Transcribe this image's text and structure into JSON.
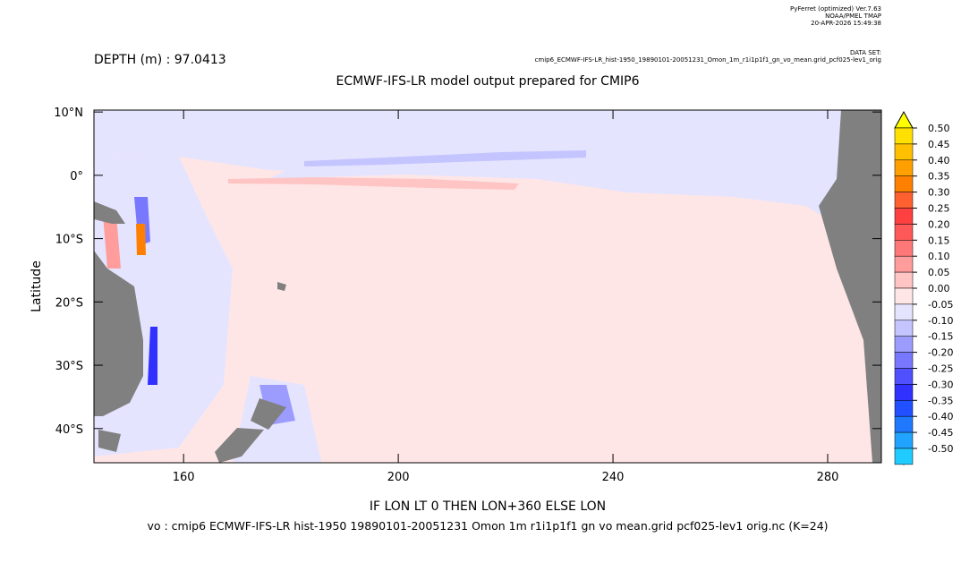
{
  "chart_data": {
    "type": "contour",
    "header": [
      "PyFerret (optimized) Ver.7.63",
      "NOAA/PMEL TMAP",
      "20-APR-2026 15:49:38"
    ],
    "dataset_label": "DATA SET:",
    "dataset": "cmip6_ECMWF-IFS-LR_hist-1950_19890101-20051231_Omon_1m_r1i1p1f1_gn_vo_mean.grid_pcf025-lev1_orig",
    "subtitle": "DEPTH (m) : 97.0413",
    "title": "ECMWF-IFS-LR model output prepared for CMIP6",
    "x_label": "IF LON LT 0 THEN LON+360 ELSE LON",
    "y_label": "Latitude",
    "footer": "vo : cmip6 ECMWF-IFS-LR hist-1950 19890101-20051231 Omon 1m r1i1p1f1 gn vo mean.grid pcf025-lev1 orig.nc (K=24)",
    "xlim": [
      143.3,
      290
    ],
    "xticks": [
      160,
      200,
      240,
      280
    ],
    "ylim": [
      -45.4,
      10.3
    ],
    "yticks": [
      {
        "value": 10,
        "label": "10°N"
      },
      {
        "value": 0,
        "label": "0°"
      },
      {
        "value": -10,
        "label": "10°S"
      },
      {
        "value": -20,
        "label": "20°S"
      },
      {
        "value": -30,
        "label": "30°S"
      },
      {
        "value": -40,
        "label": "40°S"
      }
    ],
    "colorbar": {
      "levels": [
        {
          "value": 0.5,
          "label": "0.50"
        },
        {
          "value": 0.45,
          "label": "0.45"
        },
        {
          "value": 0.4,
          "label": "0.40"
        },
        {
          "value": 0.35,
          "label": "0.35"
        },
        {
          "value": 0.3,
          "label": "0.30"
        },
        {
          "value": 0.25,
          "label": "0.25"
        },
        {
          "value": 0.2,
          "label": "0.20"
        },
        {
          "value": 0.15,
          "label": "0.15"
        },
        {
          "value": 0.1,
          "label": "0.10"
        },
        {
          "value": 0.05,
          "label": "0.05"
        },
        {
          "value": 0,
          "label": "0.00"
        },
        {
          "value": -0.05,
          "label": "-0.05"
        },
        {
          "value": -0.1,
          "label": "-0.10"
        },
        {
          "value": -0.15,
          "label": "-0.15"
        },
        {
          "value": -0.2,
          "label": "-0.20"
        },
        {
          "value": -0.25,
          "label": "-0.25"
        },
        {
          "value": -0.3,
          "label": "-0.30"
        },
        {
          "value": -0.35,
          "label": "-0.35"
        },
        {
          "value": -0.4,
          "label": "-0.40"
        },
        {
          "value": -0.45,
          "label": "-0.45"
        },
        {
          "value": -0.5,
          "label": "-0.50"
        }
      ],
      "colors": [
        "#ffe000",
        "#ffc000",
        "#ffa000",
        "#ff8000",
        "#ff6030",
        "#ff4040",
        "#ff5858",
        "#ff7878",
        "#ff9c9c",
        "#ffc4c4",
        "#ffe6e6",
        "#e4e4ff",
        "#c4c4ff",
        "#9c9cff",
        "#7878ff",
        "#5050ff",
        "#3030ff",
        "#2050ff",
        "#2078ff",
        "#20a4ff",
        "#20ccff"
      ],
      "over_color": "#ffff00",
      "under_color": "#00e8ff"
    }
  }
}
